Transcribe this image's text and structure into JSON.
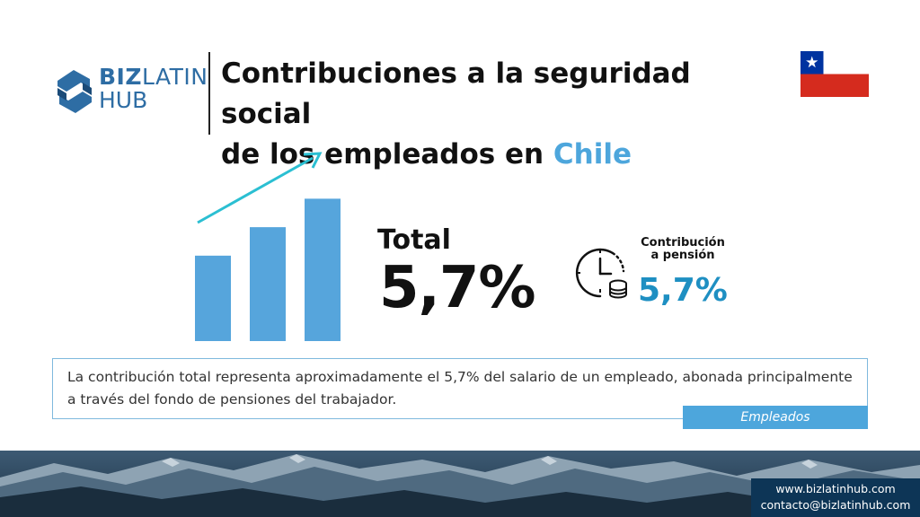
{
  "brand": {
    "logo_line1_bold": "BIZ",
    "logo_line1_light": "LATIN",
    "logo_line2": "HUB",
    "logo_icon": "bizlatinhub-logo-icon",
    "color": "#2e6da4"
  },
  "header": {
    "title_part1": "Contribuciones a la seguridad social",
    "title_part2": "de los empleados en ",
    "title_highlight": "Chile",
    "highlight_color": "#4da6dc"
  },
  "flag": {
    "icon": "chile-flag-icon",
    "colors": {
      "blue": "#0033a0",
      "white": "#ffffff",
      "red": "#d52b1e"
    }
  },
  "chart_data": {
    "type": "bar",
    "decorative": true,
    "categories": [
      "",
      "",
      ""
    ],
    "values": [
      3,
      4,
      5
    ],
    "title": "",
    "xlabel": "",
    "ylabel": "",
    "ylim": [
      0,
      5.8
    ],
    "grid": false,
    "bar_color": "#56a5dc",
    "arrow_color": "#2bbfd2"
  },
  "summary": {
    "total_label": "Total",
    "total_value": "5,7%",
    "pension_label_line1": "Contribución",
    "pension_label_line2": "a pensión",
    "pension_value": "5,7%",
    "pension_icon": "clock-coins-icon",
    "pension_color": "#1e8fc2"
  },
  "description": {
    "text": "La contribución total representa aproximadamente el 5,7% del salario de un empleado, abonada principalmente a través del fondo de pensiones del trabajador.",
    "tag": "Empleados",
    "accent_color": "#4da6dc"
  },
  "footer": {
    "website": "www.bizlatinhub.com",
    "email": "contacto@bizlatinhub.com",
    "background": "mountain-landscape-image",
    "box_color": "#0d3556"
  }
}
